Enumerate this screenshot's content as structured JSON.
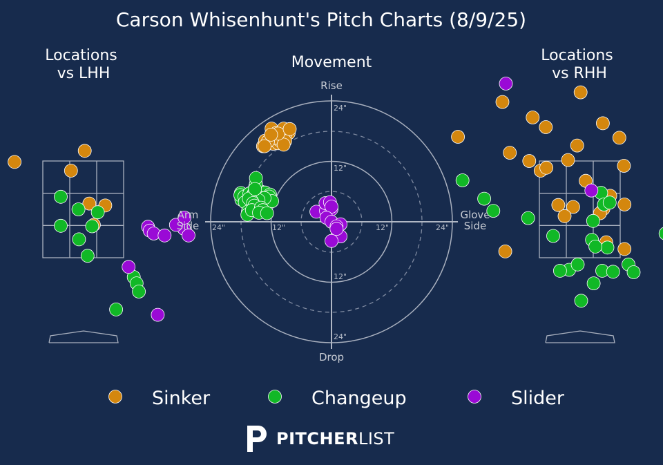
{
  "figure": {
    "title": "Carson Whisenhunt's Pitch Charts (8/9/25)",
    "left_title": [
      "Locations",
      "vs LHH"
    ],
    "center_title": "Movement",
    "right_title": [
      "Locations",
      "vs RHH"
    ]
  },
  "colors": {
    "background": "#172b4d",
    "Sinker": "#d4870e",
    "Changeup": "#11b826",
    "Slider": "#9a0ad6",
    "axis": "#9aa4b5"
  },
  "brand": {
    "bold": "PITCHER",
    "light": "LIST"
  },
  "chart_data": [
    {
      "type": "scatter",
      "title": "Locations vs LHH",
      "series": [
        {
          "name": "Sinker",
          "points": [
            [
              0.02,
              3.71
            ],
            [
              -1.21,
              3.48
            ],
            [
              -0.22,
              3.3
            ],
            [
              0.1,
              2.62
            ],
            [
              0.38,
              2.58
            ],
            [
              0.18,
              2.18
            ]
          ]
        },
        {
          "name": "Changeup",
          "points": [
            [
              -0.4,
              2.76
            ],
            [
              -0.09,
              2.5
            ],
            [
              0.25,
              2.44
            ],
            [
              -0.4,
              2.16
            ],
            [
              0.15,
              2.15
            ],
            [
              -0.08,
              1.88
            ],
            [
              0.07,
              1.54
            ],
            [
              0.88,
              1.1
            ],
            [
              0.93,
              0.97
            ],
            [
              0.97,
              0.8
            ],
            [
              0.57,
              0.43
            ]
          ]
        },
        {
          "name": "Slider",
          "points": [
            [
              1.13,
              2.14
            ],
            [
              1.16,
              2.06
            ],
            [
              1.23,
              2.0
            ],
            [
              1.42,
              1.96
            ],
            [
              1.76,
              2.1
            ],
            [
              1.84,
              1.96
            ],
            [
              1.62,
              2.18
            ],
            [
              1.77,
              2.33
            ],
            [
              0.79,
              1.31
            ],
            [
              1.3,
              0.32
            ]
          ]
        }
      ]
    },
    {
      "type": "scatter",
      "title": "Movement",
      "x_labels": [
        "Arm Side",
        "Glove Side"
      ],
      "y_labels": [
        "Rise",
        "Drop"
      ],
      "ring_labels": [
        "12\"",
        "24\""
      ],
      "range_inches": [
        -24,
        24
      ],
      "series": [
        {
          "name": "Sinker",
          "points": [
            [
              -11.9,
              18.5
            ],
            [
              -13.6,
              15.0
            ],
            [
              -11.0,
              17.6
            ],
            [
              -9.5,
              18.5
            ],
            [
              -8.5,
              17.6
            ],
            [
              -9.2,
              17.3
            ],
            [
              -12.8,
              15.4
            ],
            [
              -12.0,
              15.7
            ],
            [
              -12.5,
              16.2
            ],
            [
              -13.2,
              16.1
            ],
            [
              -11.6,
              15.5
            ],
            [
              -10.6,
              15.6
            ],
            [
              -10.3,
              16.2
            ],
            [
              -11.0,
              16.7
            ],
            [
              -12.6,
              16.0
            ],
            [
              -13.3,
              15.0
            ],
            [
              -9.2,
              16.0
            ],
            [
              -9.5,
              15.3
            ],
            [
              -10.6,
              17.5
            ],
            [
              -8.3,
              18.4
            ],
            [
              -12.0,
              17.3
            ]
          ]
        },
        {
          "name": "Changeup",
          "points": [
            [
              -18.0,
              5.7
            ],
            [
              -17.9,
              4.4
            ],
            [
              -18.1,
              5.3
            ],
            [
              -17.3,
              5.0
            ],
            [
              -16.3,
              5.6
            ],
            [
              -15.5,
              5.5
            ],
            [
              -15.3,
              5.9
            ],
            [
              -14.8,
              5.7
            ],
            [
              -14.1,
              5.4
            ],
            [
              -14.0,
              6.0
            ],
            [
              -13.2,
              5.8
            ],
            [
              -12.2,
              5.4
            ],
            [
              -13.5,
              4.7
            ],
            [
              -12.4,
              5.0
            ],
            [
              -11.8,
              4.1
            ],
            [
              -13.3,
              4.7
            ],
            [
              -14.5,
              4.3
            ],
            [
              -15.8,
              4.1
            ],
            [
              -17.2,
              3.9
            ],
            [
              -16.4,
              4.6
            ],
            [
              -15.6,
              3.7
            ],
            [
              -15.3,
              3.2
            ],
            [
              -16.6,
              2.0
            ],
            [
              -16.7,
              1.4
            ],
            [
              -15.8,
              2.3
            ],
            [
              -14.0,
              2.8
            ],
            [
              -13.6,
              2.3
            ],
            [
              -14.4,
              1.8
            ],
            [
              -12.8,
              1.7
            ],
            [
              -15.0,
              7.5
            ],
            [
              -15.0,
              8.7
            ],
            [
              -15.2,
              6.5
            ]
          ]
        },
        {
          "name": "Slider",
          "points": [
            [
              -3.0,
              2.0
            ],
            [
              -1.1,
              2.2
            ],
            [
              0.0,
              2.5
            ],
            [
              -1.2,
              3.7
            ],
            [
              -0.3,
              3.9
            ],
            [
              0.0,
              3.0
            ],
            [
              -1.0,
              0.8
            ],
            [
              0.0,
              0.0
            ],
            [
              1.8,
              -0.5
            ],
            [
              1.0,
              -0.9
            ],
            [
              1.8,
              -2.9
            ],
            [
              0.0,
              -3.8
            ],
            [
              1.0,
              -1.4
            ]
          ]
        }
      ]
    },
    {
      "type": "scatter",
      "title": "Locations vs RHH",
      "series": [
        {
          "name": "Sinker",
          "points": [
            [
              -1.35,
              4.72
            ],
            [
              0.02,
              4.92
            ],
            [
              0.41,
              4.28
            ],
            [
              -0.82,
              4.4
            ],
            [
              1.89,
              4.32
            ],
            [
              -2.13,
              4.0
            ],
            [
              -0.59,
              4.2
            ],
            [
              0.7,
              3.98
            ],
            [
              -0.04,
              3.82
            ],
            [
              -1.22,
              3.67
            ],
            [
              -0.88,
              3.5
            ],
            [
              -0.68,
              3.3
            ],
            [
              -0.58,
              3.36
            ],
            [
              -0.2,
              3.52
            ],
            [
              0.78,
              3.4
            ],
            [
              0.11,
              3.09
            ],
            [
              0.54,
              2.78
            ],
            [
              0.79,
              2.6
            ],
            [
              0.42,
              2.51
            ],
            [
              -0.37,
              2.59
            ],
            [
              -0.11,
              2.55
            ],
            [
              0.36,
              2.42
            ],
            [
              -0.26,
              2.36
            ],
            [
              0.47,
              1.82
            ],
            [
              0.79,
              1.68
            ],
            [
              -1.3,
              1.63
            ]
          ]
        },
        {
          "name": "Changeup",
          "points": [
            [
              -2.05,
              3.1
            ],
            [
              -1.67,
              2.72
            ],
            [
              -1.51,
              2.47
            ],
            [
              -0.9,
              2.32
            ],
            [
              0.24,
              2.26
            ],
            [
              0.38,
              2.84
            ],
            [
              0.43,
              2.6
            ],
            [
              0.53,
              2.64
            ],
            [
              -0.46,
              1.95
            ],
            [
              0.22,
              1.87
            ],
            [
              0.49,
              1.71
            ],
            [
              0.28,
              1.73
            ],
            [
              0.86,
              1.36
            ],
            [
              0.4,
              1.23
            ],
            [
              0.59,
              1.21
            ],
            [
              0.95,
              1.2
            ],
            [
              -0.18,
              1.25
            ],
            [
              -0.34,
              1.23
            ],
            [
              -0.03,
              1.36
            ],
            [
              1.51,
              2.0
            ],
            [
              0.25,
              0.97
            ],
            [
              0.03,
              0.61
            ],
            [
              1.79,
              0.61
            ]
          ]
        },
        {
          "name": "Slider",
          "points": [
            [
              -1.29,
              5.1
            ],
            [
              0.21,
              2.89
            ],
            [
              2.03,
              1.42
            ]
          ]
        }
      ]
    }
  ]
}
